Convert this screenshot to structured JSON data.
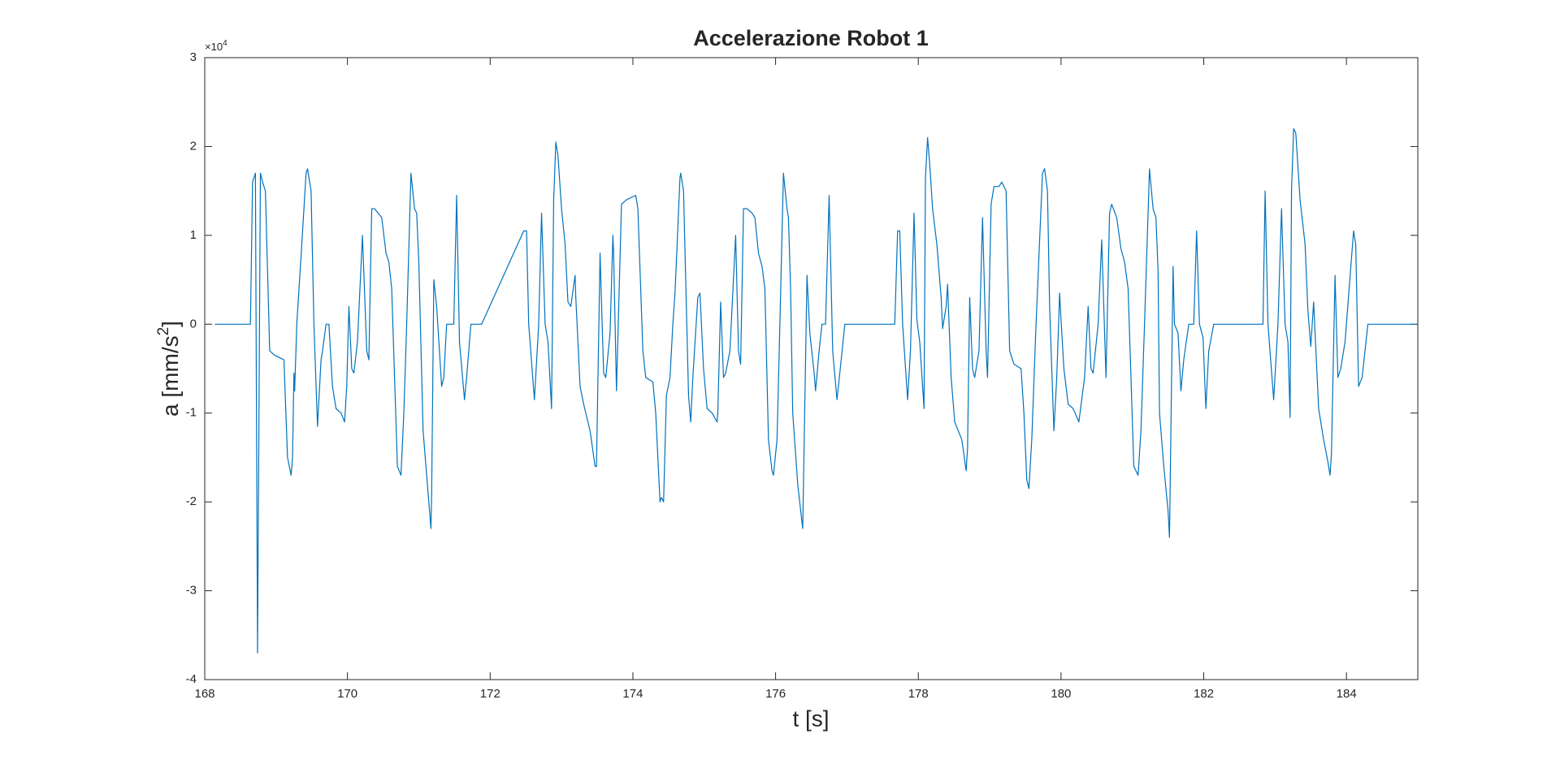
{
  "chart_data": {
    "type": "line",
    "title": "Accelerazione Robot 1",
    "xlabel": "t [s]",
    "ylabel": [
      "a [mm/s",
      "2",
      "]"
    ],
    "y_exponent": [
      "×10",
      "4"
    ],
    "color": "#0072bd",
    "xlim": [
      168,
      185
    ],
    "ylim": [
      -4,
      3
    ],
    "xticks": [
      168,
      170,
      172,
      174,
      176,
      178,
      180,
      182,
      184
    ],
    "yticks": [
      -4,
      -3,
      -2,
      -1,
      0,
      1,
      2,
      3
    ],
    "grid": false,
    "x": [
      168.14,
      168.64,
      168.67,
      168.71,
      168.74,
      168.78,
      168.81,
      168.85,
      168.91,
      168.98,
      169.11,
      169.16,
      169.21,
      169.23,
      169.25,
      169.26,
      169.29,
      169.36,
      169.42,
      169.44,
      169.49,
      169.53,
      169.58,
      169.63,
      169.65,
      169.7,
      169.74,
      169.79,
      169.84,
      169.91,
      169.96,
      169.99,
      170.02,
      170.06,
      170.09,
      170.14,
      170.21,
      170.27,
      170.3,
      170.34,
      170.38,
      170.48,
      170.54,
      170.58,
      170.62,
      170.7,
      170.75,
      170.79,
      170.83,
      170.89,
      170.94,
      170.97,
      171.0,
      171.06,
      171.17,
      171.18,
      171.21,
      171.25,
      171.32,
      171.35,
      171.39,
      171.49,
      171.53,
      171.57,
      171.64,
      171.67,
      171.73,
      171.88,
      172.47,
      172.51,
      172.54,
      172.62,
      172.68,
      172.72,
      172.77,
      172.81,
      172.86,
      172.89,
      172.92,
      172.95,
      173.0,
      173.05,
      173.09,
      173.13,
      173.19,
      173.2,
      173.26,
      173.31,
      173.4,
      173.47,
      173.49,
      173.54,
      173.59,
      173.62,
      173.68,
      173.72,
      173.73,
      173.77,
      173.84,
      173.91,
      174.04,
      174.07,
      174.14,
      174.18,
      174.28,
      174.32,
      174.38,
      174.4,
      174.43,
      174.47,
      174.52,
      174.56,
      174.59,
      174.62,
      174.66,
      174.67,
      174.71,
      174.74,
      174.78,
      174.81,
      174.84,
      174.91,
      174.94,
      174.99,
      175.04,
      175.11,
      175.18,
      175.19,
      175.23,
      175.27,
      175.3,
      175.36,
      175.44,
      175.48,
      175.51,
      175.55,
      175.6,
      175.67,
      175.71,
      175.76,
      175.81,
      175.85,
      175.9,
      175.95,
      175.97,
      176.02,
      176.06,
      176.11,
      176.16,
      176.18,
      176.21,
      176.24,
      176.31,
      176.38,
      176.44,
      176.48,
      176.54,
      176.56,
      176.61,
      176.65,
      176.7,
      176.75,
      176.8,
      176.86,
      176.9,
      176.97,
      177.67,
      177.71,
      177.74,
      177.78,
      177.85,
      177.89,
      177.94,
      177.98,
      178.02,
      178.08,
      178.1,
      178.13,
      178.16,
      178.2,
      178.26,
      178.32,
      178.34,
      178.39,
      178.41,
      178.46,
      178.51,
      178.61,
      178.67,
      178.69,
      178.72,
      178.76,
      178.79,
      178.85,
      178.9,
      178.95,
      178.97,
      179.02,
      179.06,
      179.13,
      179.17,
      179.23,
      179.28,
      179.34,
      179.44,
      179.48,
      179.52,
      179.55,
      179.59,
      179.65,
      179.74,
      179.77,
      179.81,
      179.84,
      179.9,
      179.94,
      179.98,
      180.0,
      180.04,
      180.1,
      180.17,
      180.25,
      180.29,
      180.33,
      180.38,
      180.42,
      180.45,
      180.52,
      180.57,
      180.63,
      180.68,
      180.71,
      180.78,
      180.84,
      180.89,
      180.94,
      181.02,
      181.08,
      181.12,
      181.17,
      181.24,
      181.29,
      181.33,
      181.36,
      181.38,
      181.44,
      181.5,
      181.52,
      181.57,
      181.59,
      181.64,
      181.68,
      181.72,
      181.79,
      181.86,
      181.9,
      181.94,
      181.99,
      182.03,
      182.07,
      182.14,
      182.83,
      182.86,
      182.9,
      182.98,
      183.04,
      183.09,
      183.14,
      183.18,
      183.21,
      183.23,
      183.26,
      183.29,
      183.35,
      183.42,
      183.46,
      183.5,
      183.54,
      183.61,
      183.68,
      183.74,
      183.77,
      183.79,
      183.84,
      183.88,
      183.92,
      183.98,
      184.1,
      184.13,
      184.17,
      184.22,
      184.3,
      185.0
    ],
    "values": [
      0,
      0,
      1.6,
      1.7,
      -3.7,
      1.7,
      1.6,
      1.5,
      -0.3,
      -0.35,
      -0.4,
      -1.5,
      -1.7,
      -1.5,
      -0.55,
      -0.75,
      0,
      0.9,
      1.7,
      1.75,
      1.5,
      0,
      -1.15,
      -0.4,
      -0.3,
      0,
      0,
      -0.7,
      -0.95,
      -1.0,
      -1.1,
      -0.7,
      0.2,
      -0.5,
      -0.55,
      -0.2,
      1.0,
      -0.3,
      -0.4,
      1.3,
      1.3,
      1.2,
      0.8,
      0.7,
      0.4,
      -1.6,
      -1.7,
      -1.0,
      0,
      1.7,
      1.3,
      1.25,
      0.7,
      -1.2,
      -2.3,
      -1.9,
      0.5,
      0.2,
      -0.7,
      -0.6,
      0,
      0,
      1.45,
      -0.2,
      -0.85,
      -0.6,
      0,
      0,
      1.05,
      1.05,
      0,
      -0.85,
      0,
      1.25,
      0,
      -0.2,
      -0.95,
      1.4,
      2.05,
      1.9,
      1.3,
      0.9,
      0.25,
      0.2,
      0.55,
      0.3,
      -0.7,
      -0.9,
      -1.2,
      -1.6,
      -1.6,
      0.8,
      -0.55,
      -0.6,
      -0.1,
      1.0,
      0.8,
      -0.75,
      1.35,
      1.4,
      1.45,
      1.3,
      -0.3,
      -0.6,
      -0.65,
      -1.0,
      -2.0,
      -1.95,
      -2.0,
      -0.8,
      -0.6,
      0,
      0.35,
      0.9,
      1.65,
      1.7,
      1.5,
      0.5,
      -0.8,
      -1.1,
      -0.6,
      0.3,
      0.35,
      -0.5,
      -0.95,
      -1.0,
      -1.1,
      -1.0,
      0.25,
      -0.6,
      -0.55,
      -0.3,
      1.0,
      -0.3,
      -0.45,
      1.3,
      1.3,
      1.25,
      1.2,
      0.8,
      0.65,
      0.4,
      -1.3,
      -1.65,
      -1.7,
      -1.3,
      0,
      1.7,
      1.3,
      1.2,
      0.4,
      -1.0,
      -1.8,
      -2.3,
      0.55,
      -0.1,
      -0.55,
      -0.75,
      -0.3,
      0,
      0,
      1.45,
      -0.3,
      -0.85,
      -0.55,
      0,
      0,
      1.05,
      1.05,
      0,
      -0.85,
      -0.3,
      1.25,
      0.05,
      -0.2,
      -0.95,
      1.65,
      2.1,
      1.8,
      1.3,
      0.9,
      0.3,
      -0.05,
      0.2,
      0.45,
      -0.6,
      -1.1,
      -1.3,
      -1.65,
      -1.4,
      0.3,
      -0.5,
      -0.6,
      -0.3,
      1.2,
      -0.3,
      -0.6,
      1.35,
      1.55,
      1.55,
      1.6,
      1.5,
      -0.3,
      -0.45,
      -0.5,
      -1.0,
      -1.75,
      -1.85,
      -1.3,
      0,
      1.7,
      1.75,
      1.5,
      0.2,
      -1.2,
      -0.6,
      0.35,
      0.05,
      -0.5,
      -0.9,
      -0.95,
      -1.1,
      -0.85,
      -0.6,
      0.2,
      -0.5,
      -0.55,
      0,
      0.95,
      -0.6,
      1.25,
      1.35,
      1.2,
      0.85,
      0.7,
      0.4,
      -1.6,
      -1.7,
      -1.2,
      0,
      1.75,
      1.3,
      1.2,
      0.6,
      -1.0,
      -1.6,
      -2.1,
      -2.4,
      0.65,
      0,
      -0.1,
      -0.75,
      -0.4,
      0,
      0,
      1.05,
      0,
      -0.15,
      -0.95,
      -0.3,
      0,
      0,
      1.5,
      0,
      -0.85,
      0,
      1.3,
      0,
      -0.2,
      -1.05,
      1.5,
      2.2,
      2.15,
      1.4,
      0.9,
      0.15,
      -0.25,
      0.25,
      -0.95,
      -1.3,
      -1.55,
      -1.7,
      -1.45,
      0.55,
      -0.6,
      -0.5,
      -0.2,
      1.05,
      0.9,
      -0.7,
      -0.6,
      0,
      0
    ]
  }
}
